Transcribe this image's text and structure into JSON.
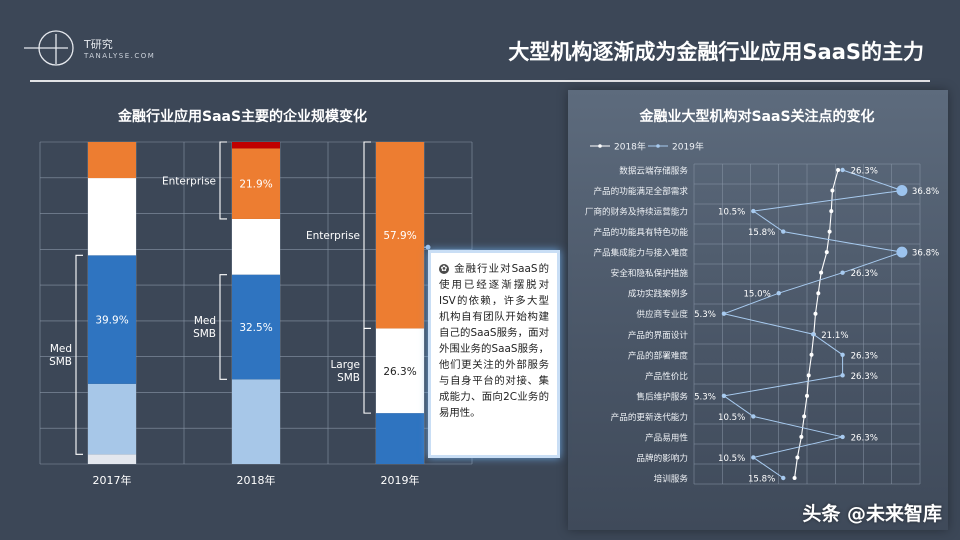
{
  "brand": {
    "name_cn": "T研究",
    "name_en": "TANALYSE.COM"
  },
  "title": "大型机构逐渐成为金融行业应用SaaS的主力",
  "left_chart": {
    "title": "金融行业应用SaaS主要的企业规模变化",
    "chart_data": {
      "type": "bar",
      "stacked": true,
      "categories": [
        "2017年",
        "2018年",
        "2019年"
      ],
      "series": [
        {
          "segment": "light-gray",
          "color": "#e3e7ee",
          "values": [
            3.0,
            0,
            0
          ]
        },
        {
          "segment": "light-blue",
          "color": "#a7c7e8",
          "values": [
            21.9,
            26.3,
            0
          ]
        },
        {
          "segment": "blue",
          "color": "#2f74c0",
          "values": [
            39.9,
            32.5,
            15.8
          ]
        },
        {
          "segment": "white",
          "color": "#ffffff",
          "values": [
            24.0,
            17.3,
            26.3
          ]
        },
        {
          "segment": "orange",
          "color": "#ed7d31",
          "values": [
            11.2,
            21.9,
            57.9
          ]
        },
        {
          "segment": "red",
          "color": "#c00000",
          "values": [
            0,
            2.0,
            0
          ]
        }
      ],
      "data_labels": [
        {
          "category": "2017年",
          "segment": "blue",
          "text": "39.9%"
        },
        {
          "category": "2018年",
          "segment": "blue",
          "text": "32.5%"
        },
        {
          "category": "2018年",
          "segment": "orange",
          "text": "21.9%"
        },
        {
          "category": "2019年",
          "segment": "white",
          "text": "26.3%"
        },
        {
          "category": "2019年",
          "segment": "orange",
          "text": "57.9%"
        }
      ],
      "brackets": [
        {
          "category": "2017年",
          "label": "Med\nSMB",
          "from": 3.0,
          "to": 64.8
        },
        {
          "category": "2018年",
          "label": "Med\nSMB",
          "from": 26.3,
          "to": 58.8
        },
        {
          "category": "2018年",
          "label": "Enterprise",
          "from": 76.1,
          "to": 100
        },
        {
          "category": "2019年",
          "label": "Large\nSMB",
          "from": 15.8,
          "to": 42.1
        },
        {
          "category": "2019年",
          "label": "Enterprise",
          "from": 42.1,
          "to": 100
        }
      ],
      "ylim": [
        0,
        100
      ],
      "grid": true
    }
  },
  "right_chart": {
    "title": "金融业大型机构对SaaS关注点的变化",
    "chart_data": {
      "type": "line",
      "orientation": "horizontal",
      "categories": [
        "数据云端存储服务",
        "产品的功能满足全部需求",
        "厂商的财务及持续运营能力",
        "产品的功能具有特色功能",
        "产品集成能力与接入难度",
        "安全和隐私保护措施",
        "成功实践案例多",
        "供应商专业度",
        "产品的界面设计",
        "产品的部署难度",
        "产品性价比",
        "售后维护服务",
        "产品的更新迭代能力",
        "产品易用性",
        "品牌的影响力",
        "培训服务"
      ],
      "series": [
        {
          "name": "2018年",
          "values": [
            25.5,
            24.5,
            24.3,
            24.0,
            23.5,
            22.5,
            22.0,
            21.5,
            21.2,
            20.8,
            20.3,
            20.0,
            19.5,
            19.0,
            18.3,
            17.8
          ]
        },
        {
          "name": "2019年",
          "values": [
            26.3,
            36.8,
            10.5,
            15.8,
            36.8,
            26.3,
            15.0,
            5.3,
            21.1,
            26.3,
            26.3,
            5.3,
            10.5,
            26.3,
            10.5,
            15.8
          ]
        }
      ],
      "point_labels": [
        "26.3%",
        "36.8%",
        "10.5%",
        "15.8%",
        "36.8%",
        "26.3%",
        "15.0%",
        "5.3%",
        "21.1%",
        "26.3%",
        "26.3%",
        "5.3%",
        "10.5%",
        "26.3%",
        "10.5%",
        "15.8%"
      ],
      "highlight_values": [
        36.8
      ],
      "legend_position": "top-left",
      "grid": true
    }
  },
  "callout": {
    "icon": "gear-icon",
    "text": "金融行业对SaaS的使用已经逐渐摆脱对ISV的依赖，许多大型机构自有团队开始构建自己的SaaS服务，面对外围业务的SaaS服务，他们更关注的外部服务与自身平台的对接、集成能力、面向2C业务的易用性。"
  },
  "watermark": "头条 @未来智库"
}
